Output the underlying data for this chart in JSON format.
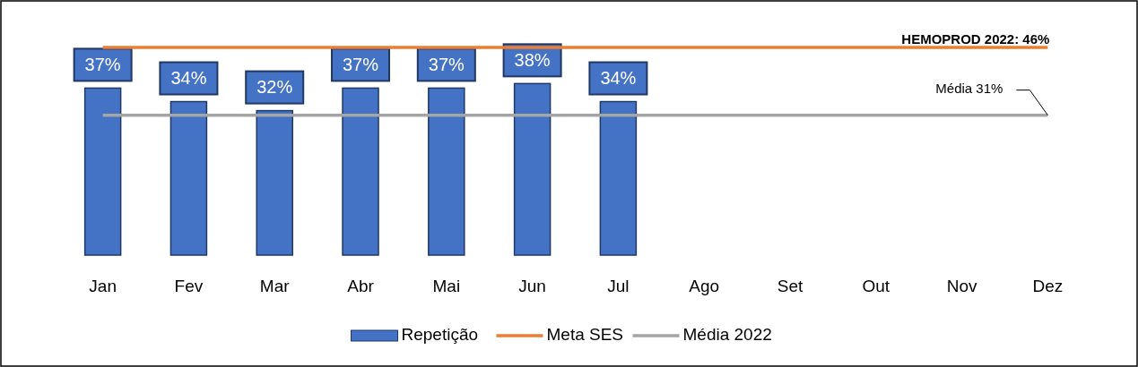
{
  "chart_data": {
    "type": "bar",
    "categories": [
      "Jan",
      "Fev",
      "Mar",
      "Abr",
      "Mai",
      "Jun",
      "Jul",
      "Ago",
      "Set",
      "Out",
      "Nov",
      "Dez"
    ],
    "series": [
      {
        "name": "Repetição",
        "color": "#4472c4",
        "values": [
          37,
          34,
          32,
          37,
          37,
          38,
          34,
          null,
          null,
          null,
          null,
          null
        ],
        "value_labels": [
          "37%",
          "34%",
          "32%",
          "37%",
          "37%",
          "38%",
          "34%",
          null,
          null,
          null,
          null,
          null
        ]
      },
      {
        "name": "Meta SES",
        "type": "line",
        "color": "#ed7d31",
        "values": [
          46,
          46,
          46,
          46,
          46,
          46,
          46,
          46,
          46,
          46,
          46,
          46
        ],
        "value_labels": [
          null,
          null,
          null,
          null,
          null,
          null,
          null,
          null,
          null,
          null,
          null,
          "HEMOPROD 2022: 46%"
        ]
      },
      {
        "name": "Média 2022",
        "type": "line",
        "color": "#a5a5a5",
        "values": [
          31,
          31,
          31,
          31,
          31,
          31,
          31,
          31,
          31,
          31,
          31,
          31
        ],
        "value_labels": [
          null,
          null,
          null,
          null,
          null,
          null,
          null,
          null,
          null,
          null,
          null,
          "Média 31%"
        ]
      }
    ],
    "tick_labels": "x",
    "legend": "bottom"
  }
}
